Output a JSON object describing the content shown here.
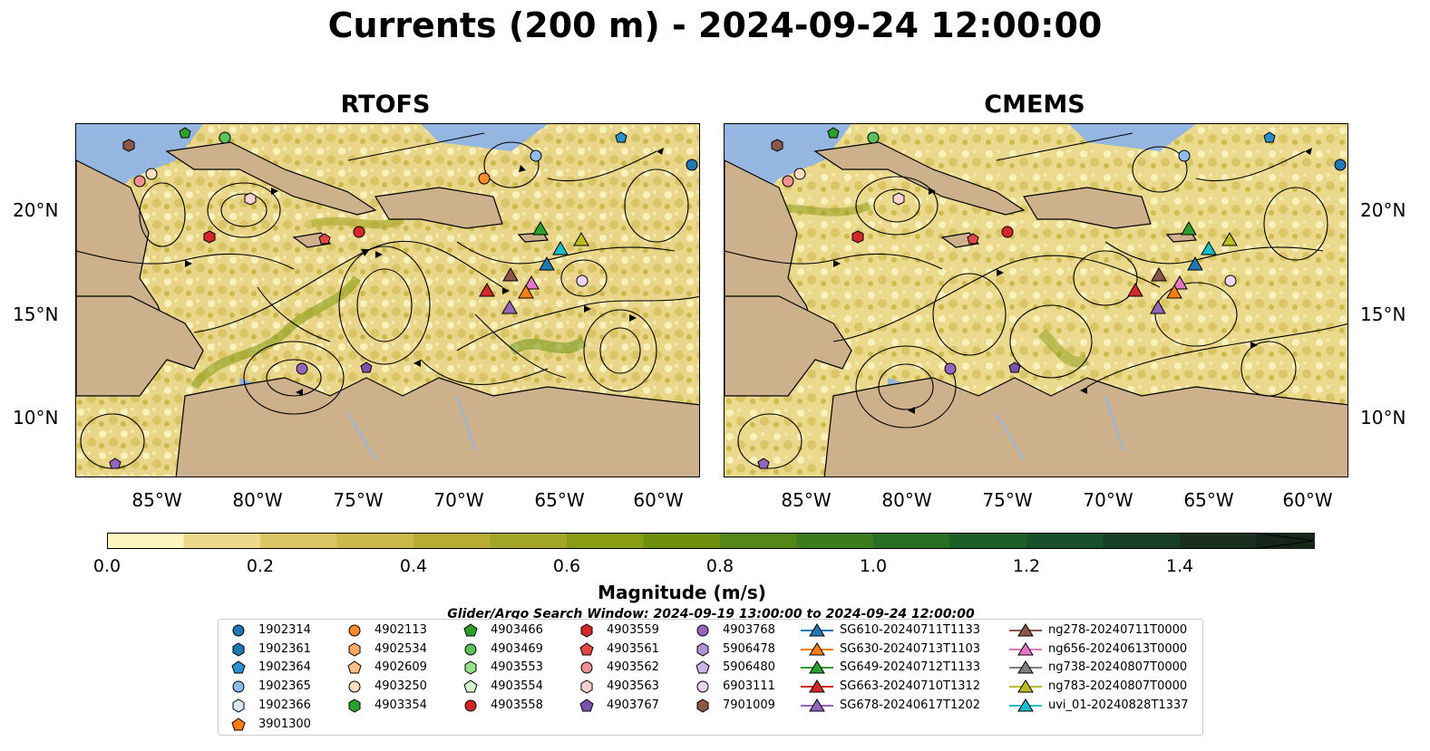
{
  "title": "Currents (200 m) - 2024-09-24 12:00:00",
  "panels": [
    {
      "title": "RTOFS"
    },
    {
      "title": "CMEMS"
    }
  ],
  "lat_labels": [
    "20°N",
    "15°N",
    "10°N"
  ],
  "lon_labels": [
    "85°W",
    "80°W",
    "75°W",
    "70°W",
    "65°W",
    "60°W"
  ],
  "colorbar": {
    "label": "Magnitude (m/s)",
    "ticks": [
      "0.0",
      "0.2",
      "0.4",
      "0.6",
      "0.8",
      "1.0",
      "1.2",
      "1.4"
    ],
    "range": [
      0.0,
      1.6
    ],
    "step": 0.1,
    "colors": [
      "#fbf5c0",
      "#ecd98a",
      "#dcc664",
      "#cdb94b",
      "#b8ad34",
      "#a3a526",
      "#8a9c15",
      "#6e900e",
      "#55861a",
      "#3e7b1f",
      "#2a6e23",
      "#1d5f28",
      "#17502a",
      "#173f26",
      "#1a2f1d",
      "#16241a"
    ],
    "extend": "max"
  },
  "search_window": "Glider/Argo Search Window: 2024-09-19 13:00:00 to 2024-09-24 12:00:00",
  "legend": {
    "columns": [
      [
        {
          "label": "1902314",
          "marker": "circle",
          "color": "#1f77b4"
        },
        {
          "label": "1902361",
          "marker": "hexagon",
          "color": "#1f77b4"
        },
        {
          "label": "1902364",
          "marker": "pentagon",
          "color": "#2c8fd0"
        },
        {
          "label": "1902365",
          "marker": "circle",
          "color": "#8fbbea"
        },
        {
          "label": "1902366",
          "marker": "hexagon",
          "color": "#d8e8f7"
        },
        {
          "label": "3901300",
          "marker": "pentagon",
          "color": "#ff7f0e"
        }
      ],
      [
        {
          "label": "4902113",
          "marker": "circle",
          "color": "#ff8c2a"
        },
        {
          "label": "4902534",
          "marker": "hexagon",
          "color": "#ffa766"
        },
        {
          "label": "4902609",
          "marker": "pentagon",
          "color": "#ffc08a"
        },
        {
          "label": "4903250",
          "marker": "circle",
          "color": "#ffe0c0"
        },
        {
          "label": "4903354",
          "marker": "hexagon",
          "color": "#2ca02c"
        }
      ],
      [
        {
          "label": "4903466",
          "marker": "pentagon",
          "color": "#2ca02c"
        },
        {
          "label": "4903469",
          "marker": "circle",
          "color": "#5bc25b"
        },
        {
          "label": "4903553",
          "marker": "hexagon",
          "color": "#98df8a"
        },
        {
          "label": "4903554",
          "marker": "pentagon",
          "color": "#d6f5cf"
        },
        {
          "label": "4903558",
          "marker": "circle",
          "color": "#d62728"
        }
      ],
      [
        {
          "label": "4903559",
          "marker": "hexagon",
          "color": "#d62728"
        },
        {
          "label": "4903561",
          "marker": "pentagon",
          "color": "#e04848"
        },
        {
          "label": "4903562",
          "marker": "circle",
          "color": "#f09090"
        },
        {
          "label": "4903563",
          "marker": "hexagon",
          "color": "#fbd0d0"
        },
        {
          "label": "4903767",
          "marker": "pentagon",
          "color": "#7b52ab"
        }
      ],
      [
        {
          "label": "4903768",
          "marker": "circle",
          "color": "#9467bd"
        },
        {
          "label": "5906478",
          "marker": "hexagon",
          "color": "#b291d6"
        },
        {
          "label": "5906480",
          "marker": "pentagon",
          "color": "#cdb5ea"
        },
        {
          "label": "6903111",
          "marker": "circle",
          "color": "#eed5f7"
        },
        {
          "label": "7901009",
          "marker": "hexagon",
          "color": "#8c564b"
        }
      ],
      [
        {
          "label": "SG610-20240711T1133",
          "marker": "triangle",
          "color": "#1f77b4"
        },
        {
          "label": "SG630-20240713T1103",
          "marker": "triangle",
          "color": "#ff7f0e"
        },
        {
          "label": "SG649-20240712T1133",
          "marker": "triangle",
          "color": "#2ca02c"
        },
        {
          "label": "SG663-20240710T1312",
          "marker": "triangle",
          "color": "#d62728"
        },
        {
          "label": "SG678-20240617T1202",
          "marker": "triangle",
          "color": "#9467bd"
        }
      ],
      [
        {
          "label": "ng278-20240711T0000",
          "marker": "triangle",
          "color": "#8c564b"
        },
        {
          "label": "ng656-20240613T0000",
          "marker": "triangle",
          "color": "#e377c2"
        },
        {
          "label": "ng738-20240807T0000",
          "marker": "triangle",
          "color": "#7f7f7f"
        },
        {
          "label": "ng783-20240807T0000",
          "marker": "triangle",
          "color": "#bcbd22"
        },
        {
          "label": "uvi_01-20240828T1337",
          "marker": "triangle",
          "color": "#17becf"
        }
      ]
    ]
  },
  "map_extent": {
    "lon": [
      -89,
      -58
    ],
    "lat": [
      7,
      24.2
    ]
  }
}
